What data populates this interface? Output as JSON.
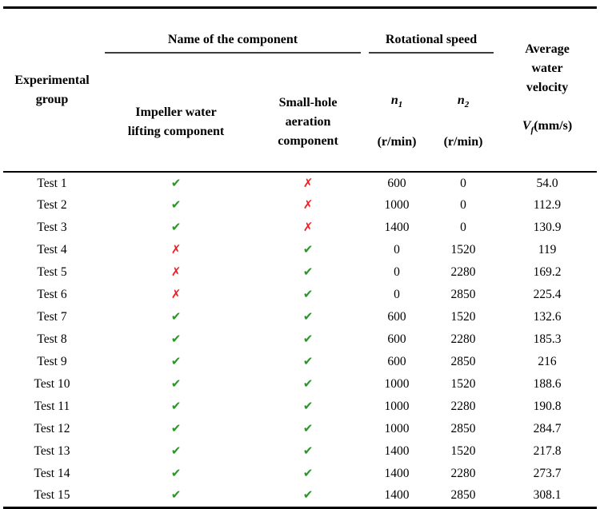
{
  "table": {
    "header": {
      "experimental_group": "Experimental\ngroup",
      "name_of_component": "Name of the component",
      "impeller": "Impeller water\nlifting component",
      "small_hole": "Small-hole\naeration\ncomponent",
      "rotational_speed": "Rotational speed",
      "n1": {
        "symbol": "n",
        "sub": "1",
        "unit": "(r/min)"
      },
      "n2": {
        "symbol": "n",
        "sub": "2",
        "unit": "(r/min)"
      },
      "average_lines": "Average\nwater\nvelocity",
      "vf": {
        "symbol": "V",
        "sub": "f",
        "unit": "(mm/s)"
      }
    },
    "icons": {
      "check": "✔",
      "cross": "✗"
    },
    "colors": {
      "check_green": "#2a9627",
      "cross_red": "#ed1f24"
    },
    "rows": [
      {
        "group": "Test 1",
        "impeller": true,
        "small_hole": false,
        "n1": "600",
        "n2": "0",
        "velocity": "54.0"
      },
      {
        "group": "Test 2",
        "impeller": true,
        "small_hole": false,
        "n1": "1000",
        "n2": "0",
        "velocity": "112.9"
      },
      {
        "group": "Test 3",
        "impeller": true,
        "small_hole": false,
        "n1": "1400",
        "n2": "0",
        "velocity": "130.9"
      },
      {
        "group": "Test 4",
        "impeller": false,
        "small_hole": true,
        "n1": "0",
        "n2": "1520",
        "velocity": "119"
      },
      {
        "group": "Test 5",
        "impeller": false,
        "small_hole": true,
        "n1": "0",
        "n2": "2280",
        "velocity": "169.2"
      },
      {
        "group": "Test 6",
        "impeller": false,
        "small_hole": true,
        "n1": "0",
        "n2": "2850",
        "velocity": "225.4"
      },
      {
        "group": "Test 7",
        "impeller": true,
        "small_hole": true,
        "n1": "600",
        "n2": "1520",
        "velocity": "132.6"
      },
      {
        "group": "Test 8",
        "impeller": true,
        "small_hole": true,
        "n1": "600",
        "n2": "2280",
        "velocity": "185.3"
      },
      {
        "group": "Test 9",
        "impeller": true,
        "small_hole": true,
        "n1": "600",
        "n2": "2850",
        "velocity": "216"
      },
      {
        "group": "Test 10",
        "impeller": true,
        "small_hole": true,
        "n1": "1000",
        "n2": "1520",
        "velocity": "188.6"
      },
      {
        "group": "Test 11",
        "impeller": true,
        "small_hole": true,
        "n1": "1000",
        "n2": "2280",
        "velocity": "190.8"
      },
      {
        "group": "Test 12",
        "impeller": true,
        "small_hole": true,
        "n1": "1000",
        "n2": "2850",
        "velocity": "284.7"
      },
      {
        "group": "Test 13",
        "impeller": true,
        "small_hole": true,
        "n1": "1400",
        "n2": "1520",
        "velocity": "217.8"
      },
      {
        "group": "Test 14",
        "impeller": true,
        "small_hole": true,
        "n1": "1400",
        "n2": "2280",
        "velocity": "273.7"
      },
      {
        "group": "Test 15",
        "impeller": true,
        "small_hole": true,
        "n1": "1400",
        "n2": "2850",
        "velocity": "308.1"
      }
    ]
  }
}
